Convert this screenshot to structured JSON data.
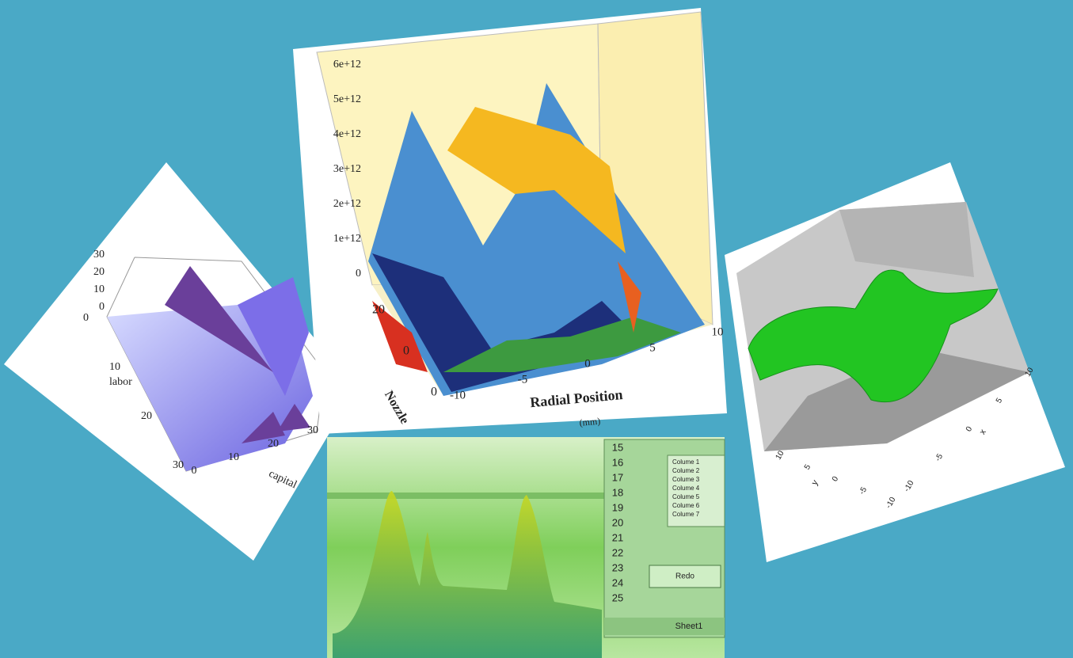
{
  "labor_panel": {
    "z_ticks": [
      "30",
      "20",
      "10",
      "0"
    ],
    "labor_ticks": [
      "0",
      "10",
      "20",
      "30"
    ],
    "labor_label": "labor",
    "capital_ticks": [
      "0",
      "10",
      "20",
      "30"
    ],
    "capital_label": "capital"
  },
  "nozzle_panel": {
    "y_ticks": [
      "6e+12",
      "5e+12",
      "4e+12",
      "3e+12",
      "2e+12",
      "1e+12",
      "0"
    ],
    "nozzle_ticks": [
      "20",
      "0",
      "0"
    ],
    "nozzle_label": "Nozzle",
    "x_ticks": [
      "-10",
      "-5",
      "0",
      "5",
      "10"
    ],
    "x_label": "Radial Position",
    "x_unit": "(mm)"
  },
  "wave_panel": {
    "x_ticks": [
      "10",
      "5",
      "0",
      "-5",
      "-10"
    ],
    "x_label": "x",
    "y_ticks": [
      "10",
      "5",
      "0",
      "-5",
      "-10"
    ],
    "y_label": "y"
  },
  "sheet_panel": {
    "rows": [
      "15",
      "16",
      "17",
      "18",
      "19",
      "20",
      "21",
      "22",
      "23",
      "24",
      "25"
    ],
    "list_items": [
      "Colume 1",
      "Colume 2",
      "Colume 3",
      "Colume 4",
      "Colume 5",
      "Colume 6",
      "Colume 7"
    ],
    "button": "Redo",
    "tab": "Sheet1"
  }
}
